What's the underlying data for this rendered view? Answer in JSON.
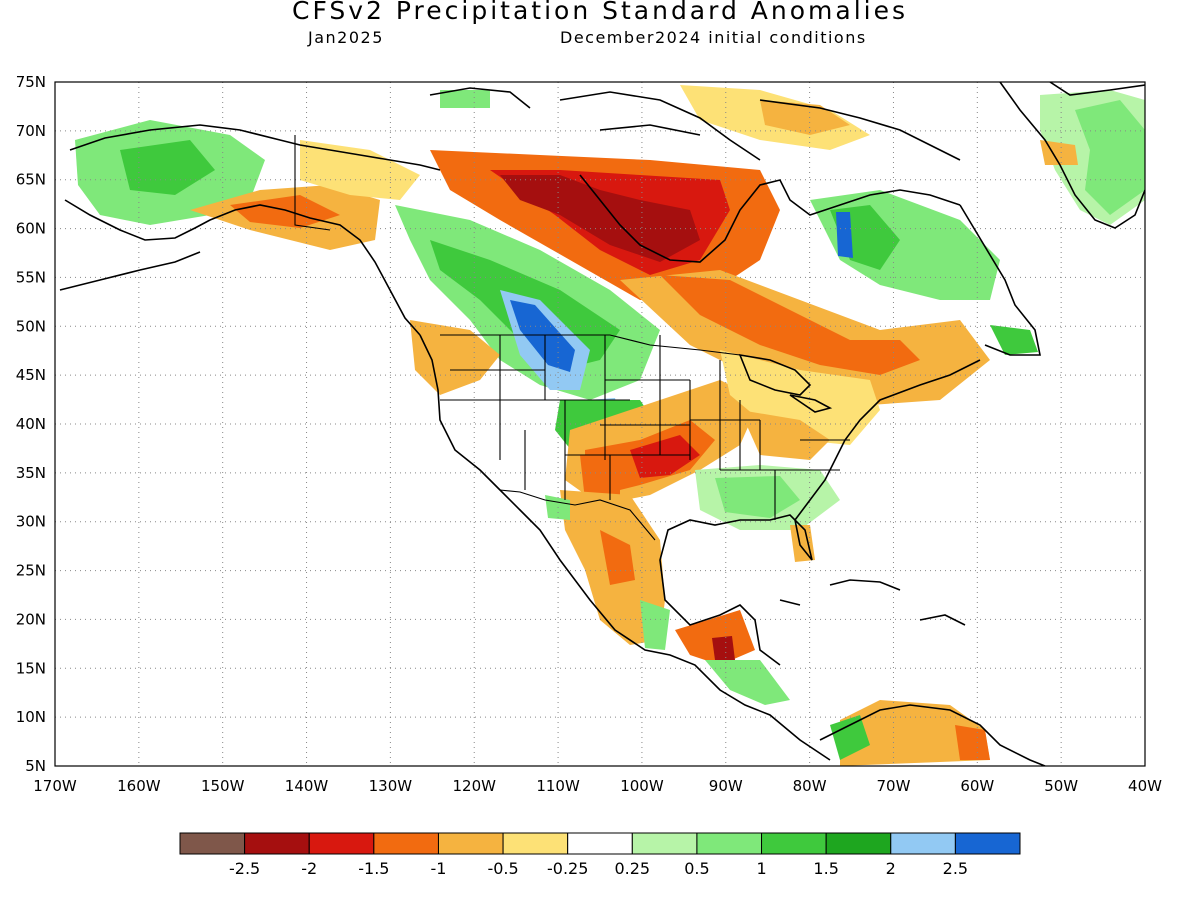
{
  "header": {
    "title": "CFSv2 Precipitation Standard Anomalies",
    "target_month": "Jan2025",
    "initial_conditions": "December2024 initial conditions"
  },
  "map": {
    "projection": "lat-lon",
    "lon_range": [
      -170,
      -40
    ],
    "lat_range": [
      5,
      75
    ],
    "lat_labels": [
      "75N",
      "70N",
      "65N",
      "60N",
      "55N",
      "50N",
      "45N",
      "40N",
      "35N",
      "30N",
      "25N",
      "20N",
      "15N",
      "10N",
      "5N"
    ],
    "lon_labels": [
      "170W",
      "160W",
      "150W",
      "140W",
      "130W",
      "120W",
      "110W",
      "100W",
      "90W",
      "80W",
      "70W",
      "60W",
      "50W",
      "40W"
    ],
    "grid": "dotted"
  },
  "legend": {
    "colors": [
      "#7f574a",
      "#a50f0f",
      "#d8180f",
      "#f26b10",
      "#f5b340",
      "#fde176",
      "#ffffff",
      "#b7f4a8",
      "#7fe87a",
      "#3fc93d",
      "#1ea61f",
      "#92c9f3",
      "#1766d3"
    ],
    "labels": [
      "-2.5",
      "-2",
      "-1.5",
      "-1",
      "-0.5",
      "-0.25",
      "0.25",
      "0.5",
      "1",
      "1.5",
      "2",
      "2.5"
    ]
  },
  "regions": [
    {
      "name": "alaska-west-wet",
      "color": "#7fe87a"
    },
    {
      "name": "alaska-south-dry",
      "color": "#f5b340"
    },
    {
      "name": "western-canada-wet",
      "color": "#3fc93d"
    },
    {
      "name": "saskatchewan-wet-core",
      "color": "#1766d3"
    },
    {
      "name": "hudson-bay-dry",
      "color": "#a50f0f"
    },
    {
      "name": "ontario-quebec-dry",
      "color": "#f26b10"
    },
    {
      "name": "southern-plains-dry",
      "color": "#d8180f"
    },
    {
      "name": "southeast-us-wet",
      "color": "#7fe87a"
    },
    {
      "name": "mexico-dry",
      "color": "#f5b340"
    },
    {
      "name": "greenland-wet",
      "color": "#7fe87a"
    },
    {
      "name": "labrador-wet",
      "color": "#1766d3"
    },
    {
      "name": "south-america-dry",
      "color": "#f5b340"
    }
  ]
}
